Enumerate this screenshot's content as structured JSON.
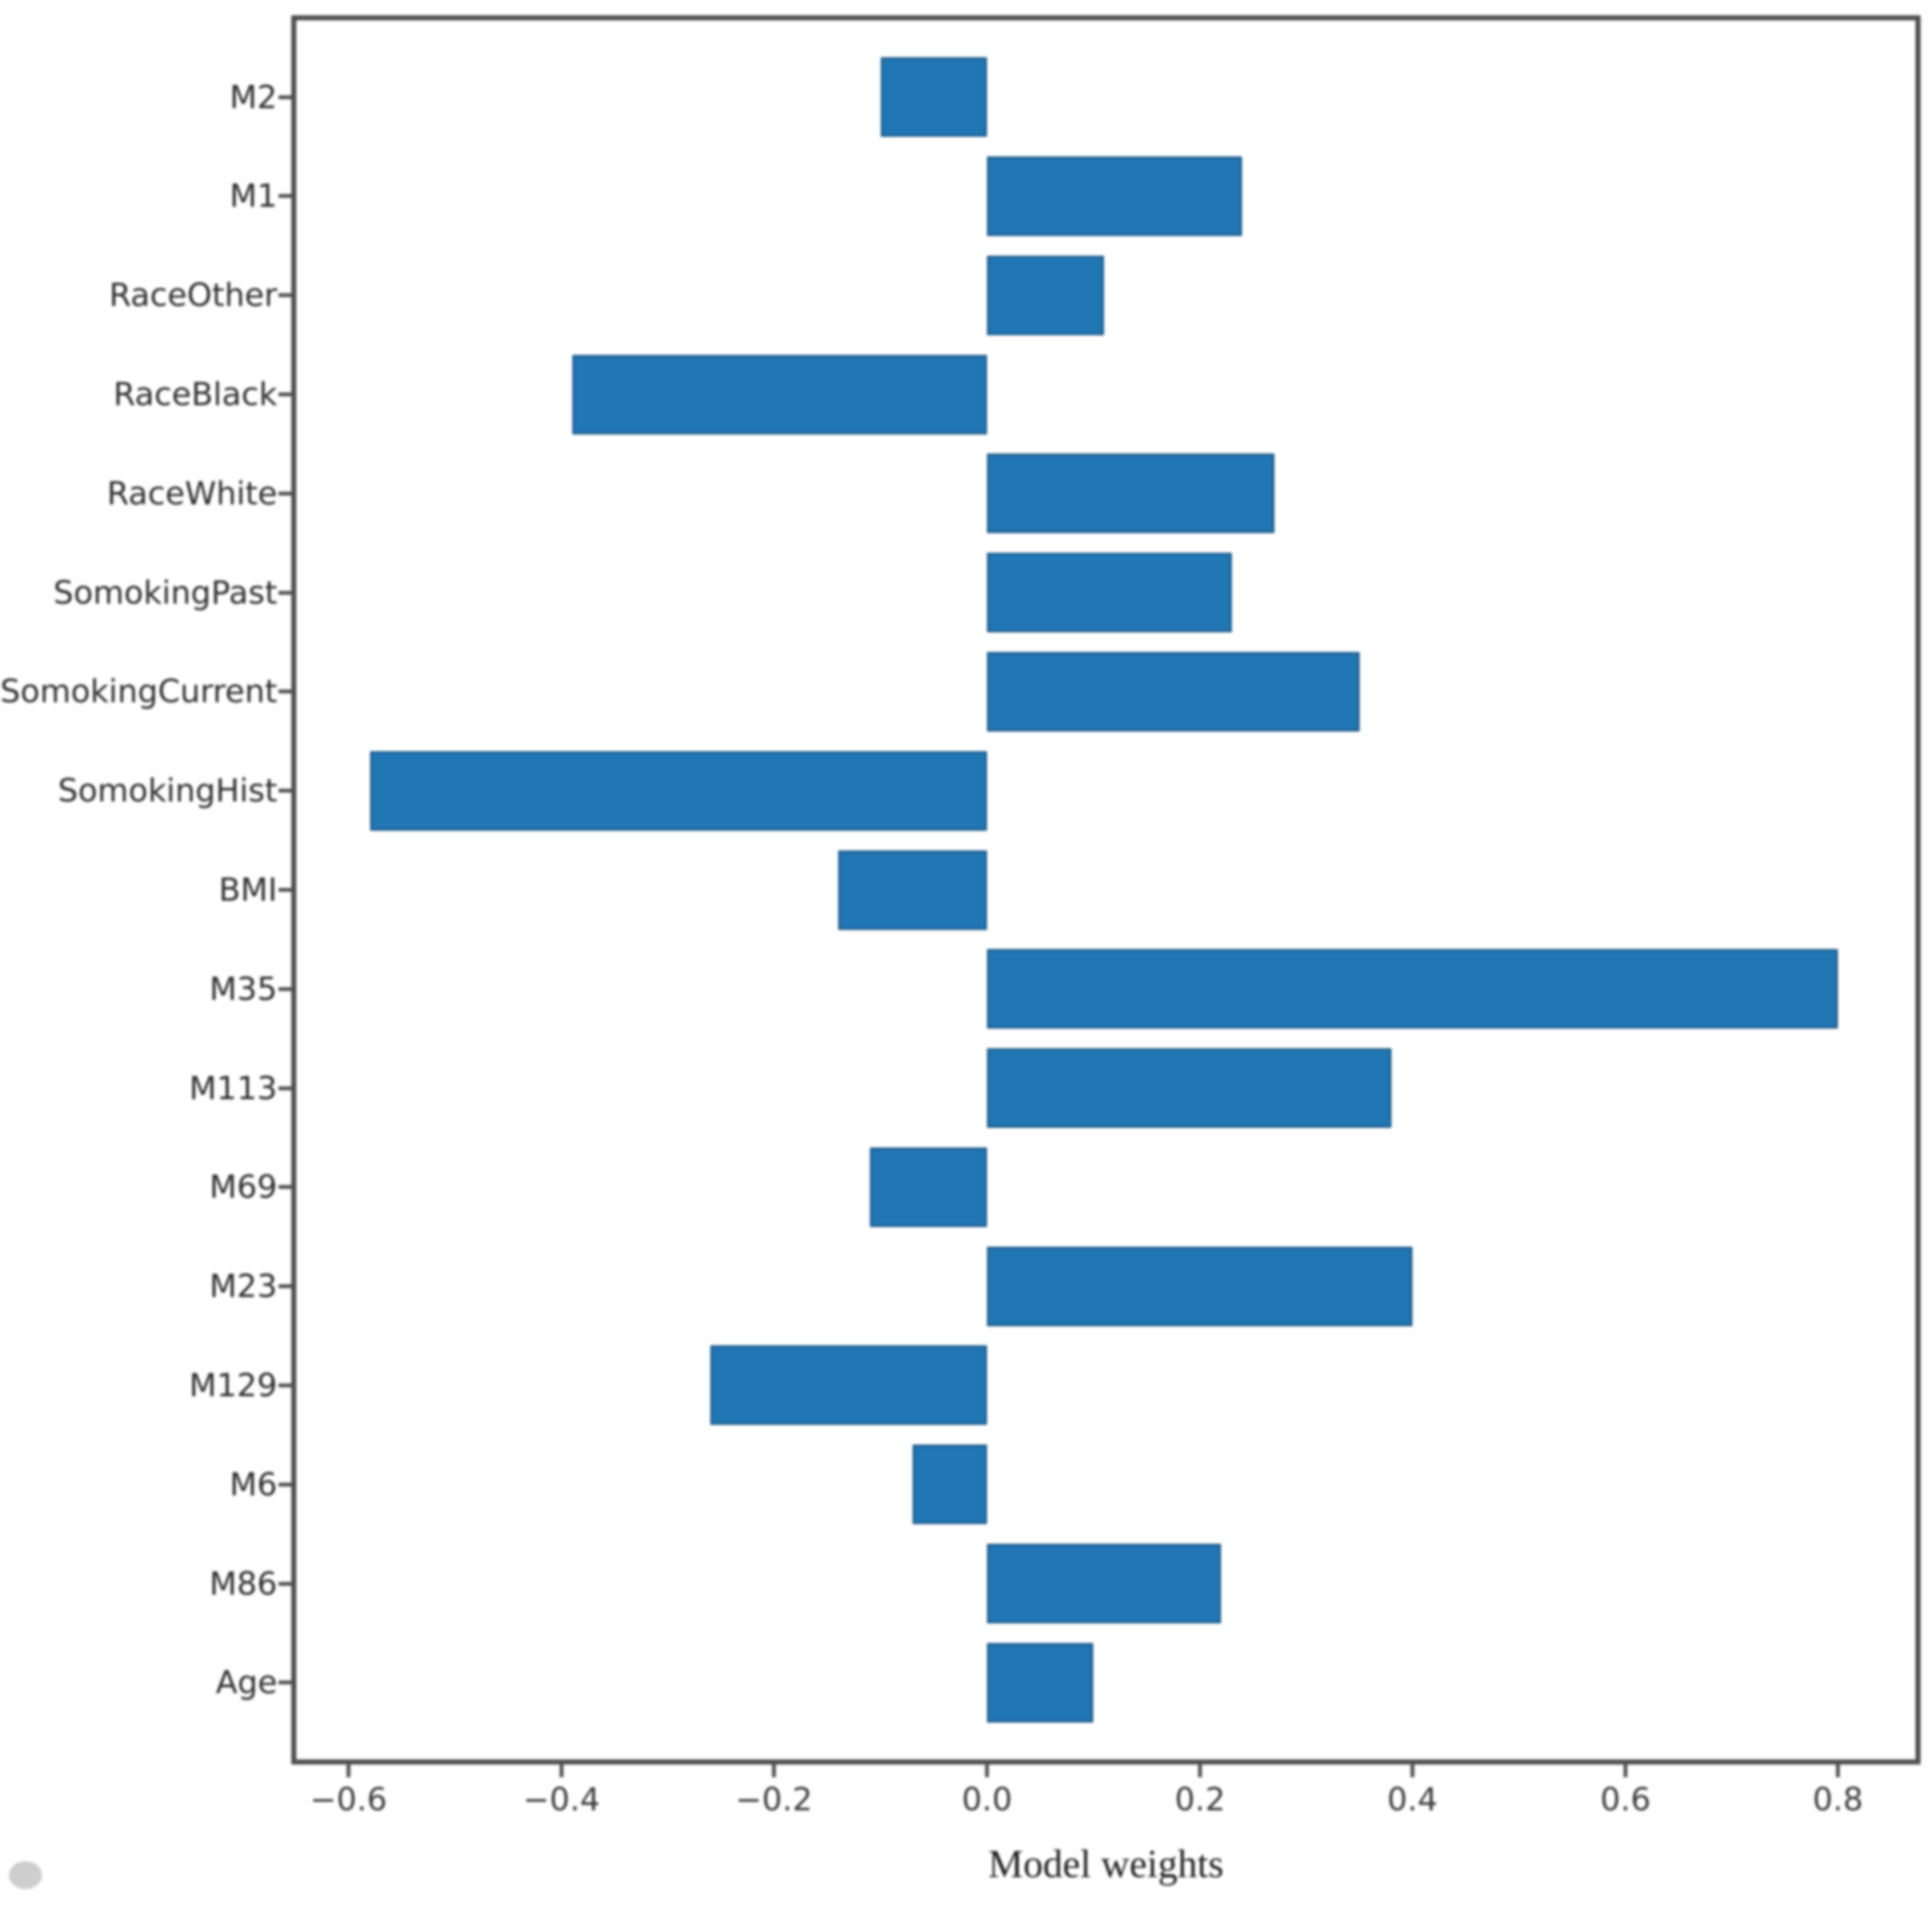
{
  "chart_data": {
    "type": "bar",
    "orientation": "horizontal",
    "title": "",
    "xlabel": "Model weights",
    "ylabel": "",
    "category_order": "top-to-bottom",
    "categories": [
      "M2",
      "M1",
      "RaceOther",
      "RaceBlack",
      "RaceWhite",
      "SomokingPast",
      "SomokingCurrent",
      "SomokingHist",
      "BMI",
      "M35",
      "M113",
      "M69",
      "M23",
      "M129",
      "M6",
      "M86",
      "Age"
    ],
    "values": [
      -0.1,
      0.24,
      0.11,
      -0.39,
      0.27,
      0.23,
      0.35,
      -0.58,
      -0.14,
      0.8,
      0.38,
      -0.11,
      0.4,
      -0.26,
      -0.07,
      0.22,
      0.1
    ],
    "x_ticks": [
      {
        "label": "−0.6",
        "value": -0.6
      },
      {
        "label": "−0.4",
        "value": -0.4
      },
      {
        "label": "−0.2",
        "value": -0.2
      },
      {
        "label": "0.0",
        "value": 0.0
      },
      {
        "label": "0.2",
        "value": 0.2
      },
      {
        "label": "0.4",
        "value": 0.4
      },
      {
        "label": "0.6",
        "value": 0.6
      },
      {
        "label": "0.8",
        "value": 0.8
      }
    ],
    "xlim": [
      -0.6516,
      0.8751
    ],
    "grid": false,
    "legend": null,
    "bar_color": "#2176b4",
    "axis_color": "#4f4f4f",
    "label_color": "#2d2d2d",
    "background_color": "#ffffff"
  }
}
